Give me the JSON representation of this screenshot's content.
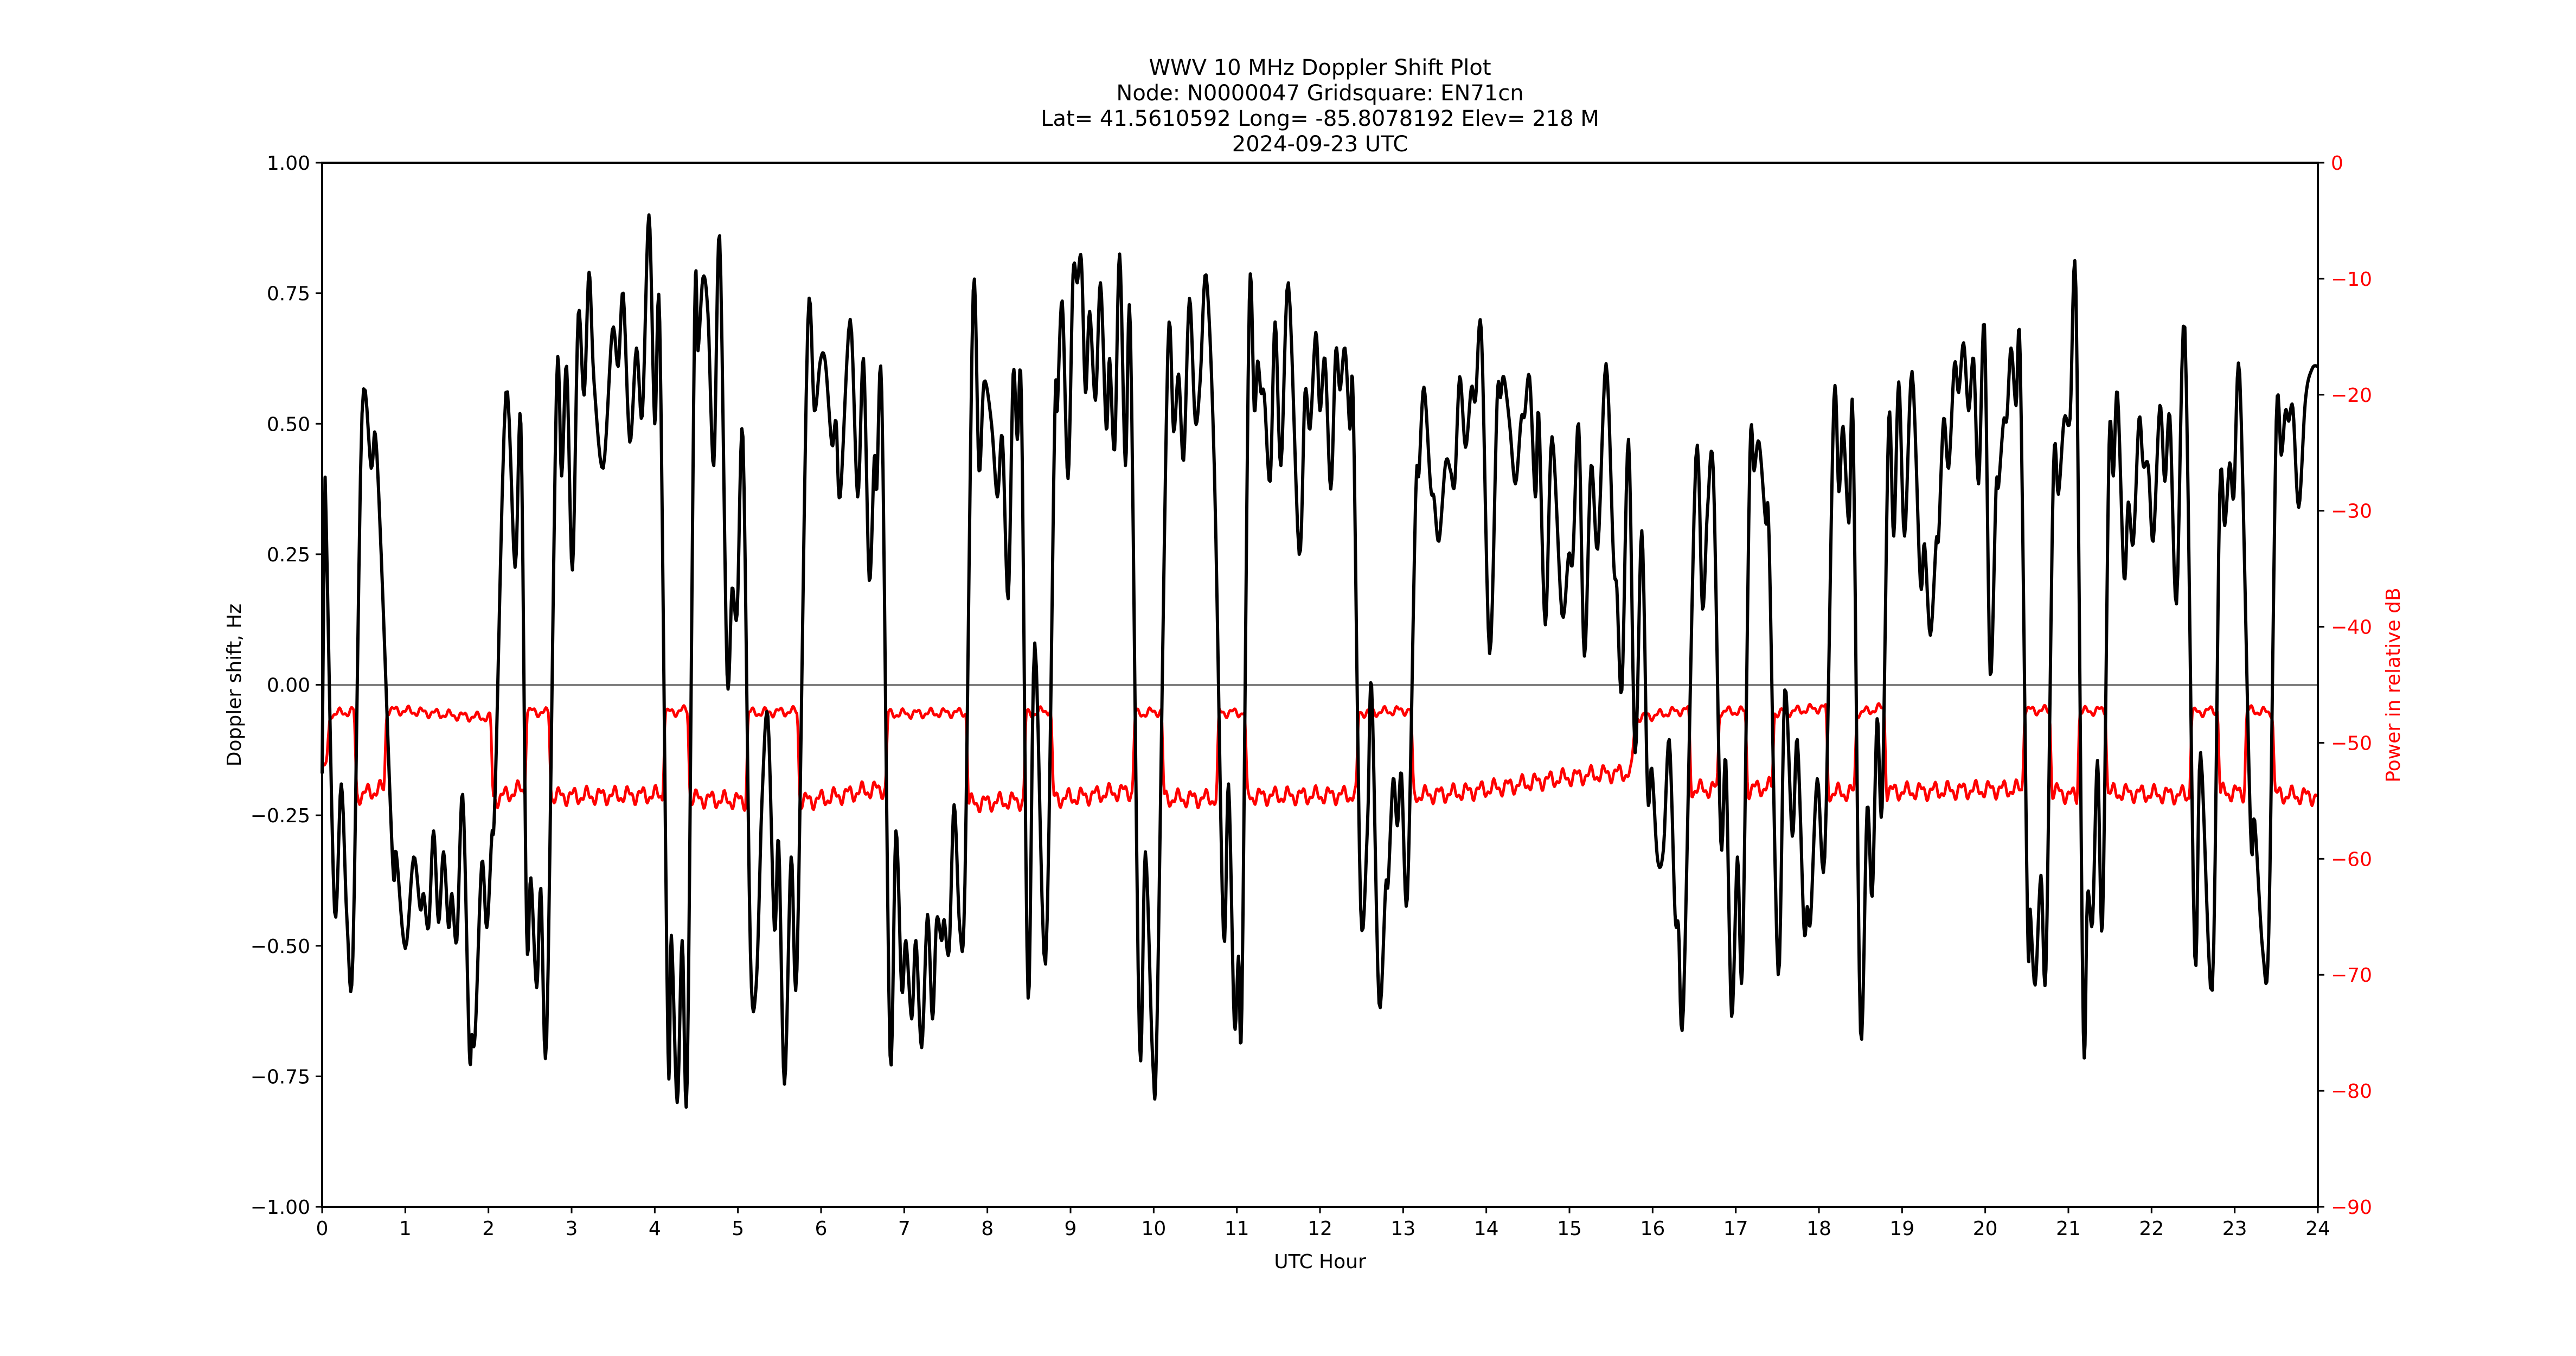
{
  "figure": {
    "title_lines": [
      "WWV 10 MHz Doppler Shift Plot",
      "Node:  N0000047     Gridsquare:  EN71cn",
      "Lat= 41.5610592    Long= -85.8078192    Elev= 218 M",
      "2024-09-23  UTC"
    ],
    "xlabel": "UTC Hour",
    "ylabel_left": "Doppler shift, Hz",
    "ylabel_right": "Power in relative dB",
    "colors": {
      "doppler": "#000000",
      "power": "#ff0000",
      "zero_line": "#808080",
      "right_axis_text": "#ff0000"
    }
  },
  "chart_data": {
    "type": "line",
    "title": "WWV 10 MHz Doppler Shift Plot",
    "subtitle": "Node:  N0000047     Gridsquare:  EN71cn | Lat= 41.5610592    Long= -85.8078192    Elev= 218 M | 2024-09-23  UTC",
    "xlabel": "UTC Hour",
    "ylabel": "Doppler shift, Hz",
    "ylabel_right": "Power in relative dB",
    "xlim": [
      0,
      24
    ],
    "ylim": [
      -1.0,
      1.0
    ],
    "ylim_right": [
      -90,
      0
    ],
    "x_ticks": [
      "0",
      "1",
      "2",
      "3",
      "4",
      "5",
      "6",
      "7",
      "8",
      "9",
      "10",
      "11",
      "12",
      "13",
      "14",
      "15",
      "16",
      "17",
      "18",
      "19",
      "20",
      "21",
      "22",
      "23",
      "24"
    ],
    "y_ticks_left": [
      "1.00",
      "0.75",
      "0.50",
      "0.25",
      "0.00",
      "−0.25",
      "−0.50",
      "−0.75",
      "−1.00"
    ],
    "y_ticks_right": [
      "0",
      "−10",
      "−20",
      "−30",
      "−40",
      "−50",
      "−60",
      "−70",
      "−80",
      "−90"
    ],
    "grid": false,
    "zero_line": true,
    "series": [
      {
        "name": "Doppler shift (Hz)",
        "axis": "left",
        "color": "#000000",
        "x": [
          0.0,
          0.03,
          0.05,
          0.15,
          0.23,
          0.3,
          0.37,
          0.48,
          0.59,
          0.64,
          0.71,
          0.85,
          0.89,
          1.0,
          1.1,
          1.18,
          1.22,
          1.28,
          1.34,
          1.4,
          1.46,
          1.52,
          1.56,
          1.62,
          1.69,
          1.77,
          1.8,
          1.84,
          1.92,
          1.98,
          2.04,
          2.08,
          2.21,
          2.32,
          2.39,
          2.46,
          2.51,
          2.58,
          2.63,
          2.7,
          2.82,
          2.88,
          2.94,
          3.01,
          3.08,
          3.15,
          3.21,
          3.27,
          3.38,
          3.49,
          3.56,
          3.62,
          3.7,
          3.78,
          3.85,
          3.93,
          4.0,
          4.06,
          4.16,
          4.2,
          4.27,
          4.33,
          4.39,
          4.48,
          4.52,
          4.58,
          4.64,
          4.71,
          4.78,
          4.87,
          4.93,
          4.99,
          5.06,
          5.15,
          5.22,
          5.29,
          5.36,
          5.44,
          5.49,
          5.56,
          5.64,
          5.71,
          5.84,
          5.92,
          5.99,
          6.05,
          6.13,
          6.18,
          6.23,
          6.35,
          6.44,
          6.51,
          6.58,
          6.64,
          6.67,
          6.73,
          6.83,
          6.9,
          6.97,
          7.02,
          7.09,
          7.14,
          7.21,
          7.28,
          7.34,
          7.39,
          7.45,
          7.48,
          7.54,
          7.6,
          7.67,
          7.73,
          7.83,
          7.9,
          7.96,
          8.05,
          8.12,
          8.18,
          8.25,
          8.31,
          8.36,
          8.41,
          8.49,
          8.57,
          8.7,
          8.81,
          8.84,
          8.9,
          8.97,
          9.03,
          9.08,
          9.13,
          9.18,
          9.23,
          9.3,
          9.36,
          9.43,
          9.47,
          9.53,
          9.59,
          9.66,
          9.72,
          9.83,
          9.9,
          9.99,
          10.04,
          10.17,
          10.24,
          10.3,
          10.36,
          10.43,
          10.5,
          10.56,
          10.63,
          10.73,
          10.84,
          10.9,
          10.97,
          11.02,
          11.06,
          11.15,
          11.21,
          11.25,
          11.29,
          11.33,
          11.4,
          11.46,
          11.53,
          11.62,
          11.75,
          11.82,
          11.88,
          11.95,
          12.0,
          12.06,
          12.13,
          12.19,
          12.24,
          12.3,
          12.36,
          12.4,
          12.49,
          12.57,
          12.62,
          12.71,
          12.79,
          12.82,
          12.88,
          12.93,
          12.98,
          13.05,
          13.15,
          13.19,
          13.25,
          13.33,
          13.37,
          13.43,
          13.51,
          13.57,
          13.62,
          13.68,
          13.75,
          13.82,
          13.87,
          13.94,
          14.04,
          14.13,
          14.17,
          14.21,
          14.28,
          14.35,
          14.42,
          14.46,
          14.52,
          14.59,
          14.63,
          14.71,
          14.79,
          14.91,
          14.99,
          15.04,
          15.11,
          15.18,
          15.26,
          15.34,
          15.44,
          15.53,
          15.57,
          15.63,
          15.71,
          15.79,
          15.87,
          15.94,
          15.99,
          16.06,
          16.13,
          16.2,
          16.27,
          16.31,
          16.37,
          16.52,
          16.6,
          16.66,
          16.73,
          16.82,
          16.88,
          16.95,
          17.02,
          17.08,
          17.17,
          17.22,
          17.28,
          17.36,
          17.4,
          17.51,
          17.59,
          17.68,
          17.74,
          17.82,
          17.86,
          17.9,
          17.98,
          18.07,
          18.18,
          18.24,
          18.29,
          18.36,
          18.41,
          18.5,
          18.58,
          18.64,
          18.7,
          18.76,
          18.84,
          18.9,
          18.96,
          19.03,
          19.12,
          19.22,
          19.27,
          19.34,
          19.41,
          19.44,
          19.5,
          19.56,
          19.63,
          19.68,
          19.74,
          19.8,
          19.86,
          19.92,
          19.99,
          20.06,
          20.13,
          20.16,
          20.22,
          20.26,
          20.31,
          20.37,
          20.42,
          20.51,
          20.54,
          20.6,
          20.67,
          20.73,
          20.82,
          20.88,
          20.95,
          21.02,
          21.09,
          21.18,
          21.23,
          21.29,
          21.35,
          21.41,
          21.49,
          21.54,
          21.59,
          21.67,
          21.72,
          21.78,
          21.85,
          21.9,
          21.96,
          22.02,
          22.1,
          22.16,
          22.22,
          22.3,
          22.4,
          22.52,
          22.59,
          22.73,
          22.82,
          22.88,
          22.94,
          22.99,
          23.06,
          23.19,
          23.24,
          23.34,
          23.41,
          23.5,
          23.56,
          23.61,
          23.65,
          23.7,
          23.77,
          23.85,
          23.93,
          24.0
        ],
        "values": [
          -0.17,
          0.34,
          0.3,
          -0.435,
          -0.19,
          -0.455,
          -0.52,
          0.52,
          0.415,
          0.48,
          0.25,
          -0.345,
          -0.32,
          -0.505,
          -0.33,
          -0.43,
          -0.4,
          -0.465,
          -0.28,
          -0.455,
          -0.32,
          -0.465,
          -0.4,
          -0.49,
          -0.21,
          -0.7,
          -0.67,
          -0.67,
          -0.34,
          -0.465,
          -0.29,
          -0.21,
          0.56,
          0.225,
          0.5,
          -0.475,
          -0.37,
          -0.58,
          -0.39,
          -0.68,
          0.58,
          0.4,
          0.61,
          0.22,
          0.71,
          0.555,
          0.79,
          0.58,
          0.415,
          0.68,
          0.61,
          0.75,
          0.465,
          0.645,
          0.515,
          0.9,
          0.5,
          0.695,
          -0.705,
          -0.48,
          -0.8,
          -0.49,
          -0.76,
          0.71,
          0.64,
          0.78,
          0.71,
          0.42,
          0.86,
          0.02,
          0.185,
          0.135,
          0.475,
          -0.51,
          -0.575,
          -0.22,
          -0.06,
          -0.47,
          -0.3,
          -0.765,
          -0.33,
          -0.545,
          0.69,
          0.525,
          0.62,
          0.62,
          0.46,
          0.505,
          0.36,
          0.7,
          0.36,
          0.625,
          0.2,
          0.435,
          0.375,
          0.56,
          -0.71,
          -0.28,
          -0.585,
          -0.49,
          -0.64,
          -0.49,
          -0.695,
          -0.44,
          -0.64,
          -0.45,
          -0.49,
          -0.45,
          -0.51,
          -0.23,
          -0.47,
          -0.38,
          0.755,
          0.41,
          0.58,
          0.5,
          0.36,
          0.475,
          0.165,
          0.595,
          0.47,
          0.545,
          -0.6,
          0.08,
          -0.535,
          0.51,
          0.525,
          0.735,
          0.395,
          0.785,
          0.77,
          0.815,
          0.56,
          0.715,
          0.545,
          0.77,
          0.49,
          0.625,
          0.45,
          0.825,
          0.42,
          0.685,
          -0.69,
          -0.32,
          -0.725,
          -0.65,
          0.64,
          0.485,
          0.595,
          0.43,
          0.74,
          0.505,
          0.585,
          0.785,
          0.41,
          -0.48,
          -0.19,
          -0.65,
          -0.52,
          -0.62,
          0.735,
          0.525,
          0.62,
          0.56,
          0.555,
          0.39,
          0.695,
          0.42,
          0.77,
          0.25,
          0.56,
          0.49,
          0.675,
          0.525,
          0.625,
          0.375,
          0.64,
          0.565,
          0.645,
          0.49,
          0.54,
          -0.43,
          -0.275,
          0.0,
          -0.61,
          -0.385,
          -0.38,
          -0.18,
          -0.27,
          -0.17,
          -0.41,
          0.355,
          0.405,
          0.57,
          0.38,
          0.36,
          0.275,
          0.425,
          0.41,
          0.385,
          0.59,
          0.455,
          0.57,
          0.545,
          0.68,
          0.06,
          0.545,
          0.55,
          0.59,
          0.5,
          0.385,
          0.51,
          0.515,
          0.59,
          0.36,
          0.52,
          0.115,
          0.475,
          0.135,
          0.25,
          0.24,
          0.5,
          0.055,
          0.42,
          0.26,
          0.615,
          0.24,
          0.185,
          -0.01,
          0.47,
          -0.13,
          0.295,
          -0.21,
          -0.16,
          -0.335,
          -0.315,
          -0.105,
          -0.44,
          -0.46,
          -0.62,
          0.435,
          0.145,
          0.335,
          0.41,
          -0.3,
          -0.145,
          -0.635,
          -0.33,
          -0.545,
          0.435,
          0.41,
          0.465,
          0.31,
          0.285,
          -0.555,
          -0.01,
          -0.29,
          -0.105,
          -0.465,
          -0.425,
          -0.45,
          -0.18,
          -0.33,
          0.545,
          0.37,
          0.495,
          0.31,
          0.505,
          -0.665,
          -0.235,
          -0.405,
          -0.065,
          -0.235,
          0.51,
          0.285,
          0.58,
          0.285,
          0.6,
          0.195,
          0.27,
          0.095,
          0.275,
          0.285,
          0.51,
          0.415,
          0.615,
          0.56,
          0.655,
          0.525,
          0.625,
          0.385,
          0.69,
          0.02,
          0.375,
          0.38,
          0.505,
          0.51,
          0.645,
          0.535,
          0.63,
          -0.465,
          -0.43,
          -0.575,
          -0.365,
          -0.545,
          0.41,
          0.365,
          0.51,
          0.51,
          0.76,
          -0.665,
          -0.4,
          -0.455,
          -0.145,
          -0.46,
          0.46,
          0.4,
          0.56,
          0.205,
          0.35,
          0.27,
          0.51,
          0.42,
          0.42,
          0.275,
          0.535,
          0.39,
          0.515,
          0.155,
          0.685,
          -0.52,
          -0.13,
          -0.585,
          0.365,
          0.305,
          0.425,
          0.36,
          0.595,
          -0.275,
          -0.26,
          -0.515,
          -0.475,
          0.505,
          0.44,
          0.525,
          0.505,
          0.53,
          0.34,
          0.545,
          0.605,
          0.61
        ]
      },
      {
        "name": "Power (relative dB)",
        "axis": "right",
        "color": "#ff0000",
        "x": [
          0.0,
          0.05,
          0.1,
          0.38,
          0.42,
          0.74,
          0.78,
          2.02,
          2.06,
          2.43,
          2.47,
          2.72,
          2.76,
          4.09,
          4.13,
          4.39,
          4.43,
          5.09,
          5.13,
          5.71,
          5.75,
          6.77,
          6.81,
          7.74,
          7.78,
          8.43,
          8.47,
          8.76,
          8.8,
          9.74,
          9.78,
          10.09,
          10.13,
          10.75,
          10.79,
          11.09,
          11.13,
          12.43,
          12.47,
          13.09,
          13.13,
          15.74,
          15.8,
          16.43,
          16.47,
          16.77,
          16.81,
          17.11,
          17.15,
          17.43,
          17.47,
          18.08,
          18.12,
          18.42,
          18.46,
          18.78,
          18.82,
          20.44,
          20.48,
          20.77,
          20.81,
          21.1,
          21.14,
          21.44,
          21.48,
          22.45,
          22.49,
          22.79,
          22.83,
          23.11,
          23.15,
          23.45,
          23.49,
          24.0
        ],
        "values": [
          -52.5,
          -52.0,
          -47.5,
          -47.3,
          -54.5,
          -54.0,
          -47.2,
          -47.8,
          -54.8,
          -54.0,
          -47.3,
          -47.4,
          -54.6,
          -54.5,
          -47.4,
          -47.2,
          -54.8,
          -55.0,
          -47.4,
          -47.3,
          -55.0,
          -54.0,
          -47.5,
          -47.4,
          -55.2,
          -55.0,
          -47.5,
          -47.2,
          -54.8,
          -54.2,
          -47.5,
          -47.3,
          -54.8,
          -54.8,
          -47.4,
          -47.4,
          -54.6,
          -54.5,
          -47.4,
          -47.2,
          -54.5,
          -52.6,
          -47.8,
          -47.2,
          -54.0,
          -54.0,
          -47.3,
          -47.3,
          -54.0,
          -53.8,
          -47.4,
          -47.0,
          -54.3,
          -54.3,
          -47.4,
          -47.0,
          -54.2,
          -54.0,
          -47.2,
          -47.2,
          -54.2,
          -54.6,
          -47.3,
          -47.2,
          -54.3,
          -54.5,
          -47.4,
          -47.2,
          -54.3,
          -54.3,
          -47.2,
          -47.4,
          -54.5,
          -54.6
        ]
      }
    ]
  }
}
